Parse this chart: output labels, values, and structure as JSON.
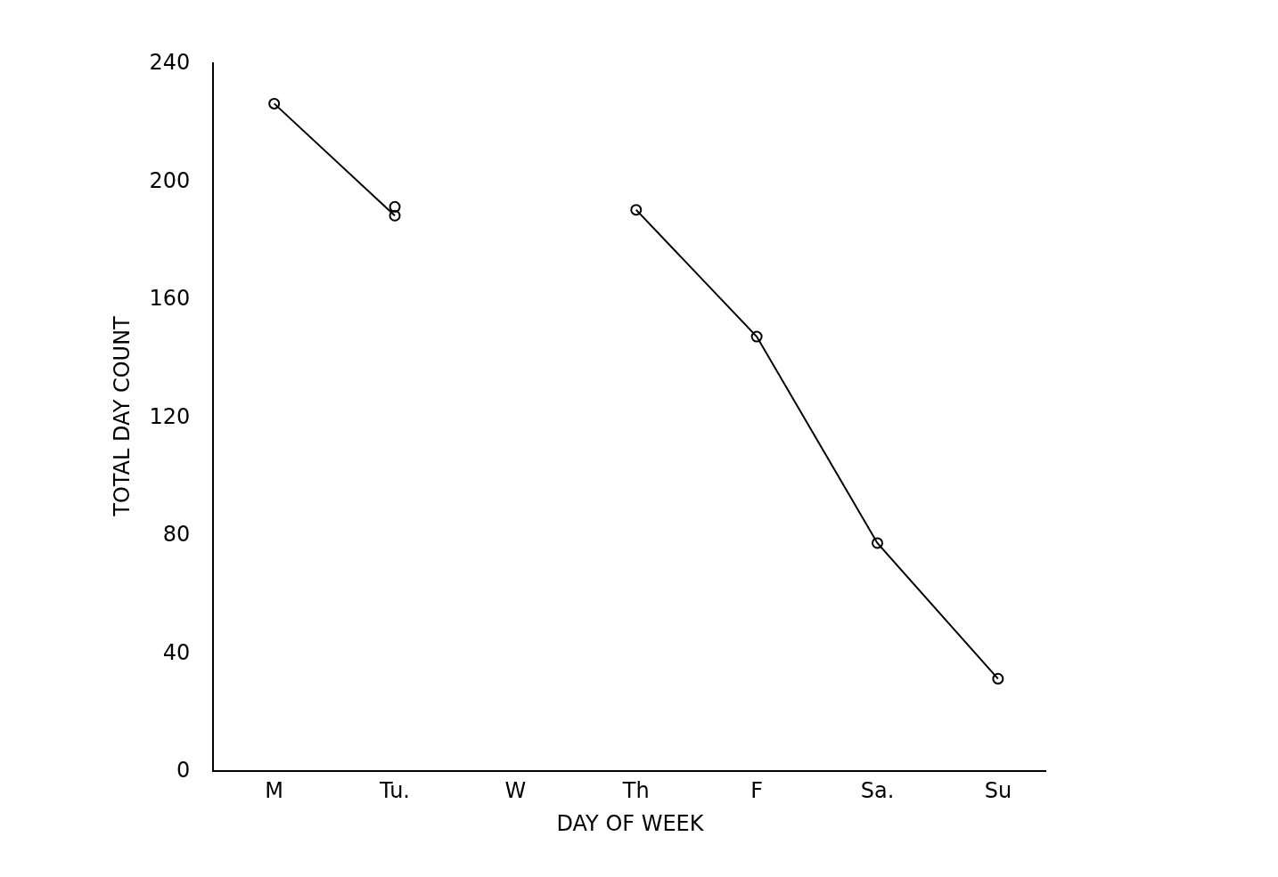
{
  "chart_data": {
    "type": "line",
    "xlabel": "DAY OF WEEK",
    "ylabel": "TOTAL DAY COUNT",
    "categories": [
      "M",
      "Tu.",
      "W",
      "Th",
      "F",
      "Sa.",
      "Su"
    ],
    "series": [
      {
        "color": "#000000",
        "values": [
          226,
          188,
          null,
          190,
          147,
          77,
          31
        ]
      },
      {
        "type": "scatter",
        "color": "#000000",
        "values": [
          null,
          191,
          null,
          null,
          null,
          null,
          null
        ]
      }
    ],
    "ylim": [
      0,
      240
    ],
    "yticks": [
      0,
      40,
      80,
      120,
      160,
      200,
      240
    ],
    "marker": "circle",
    "line_style": "solid"
  }
}
